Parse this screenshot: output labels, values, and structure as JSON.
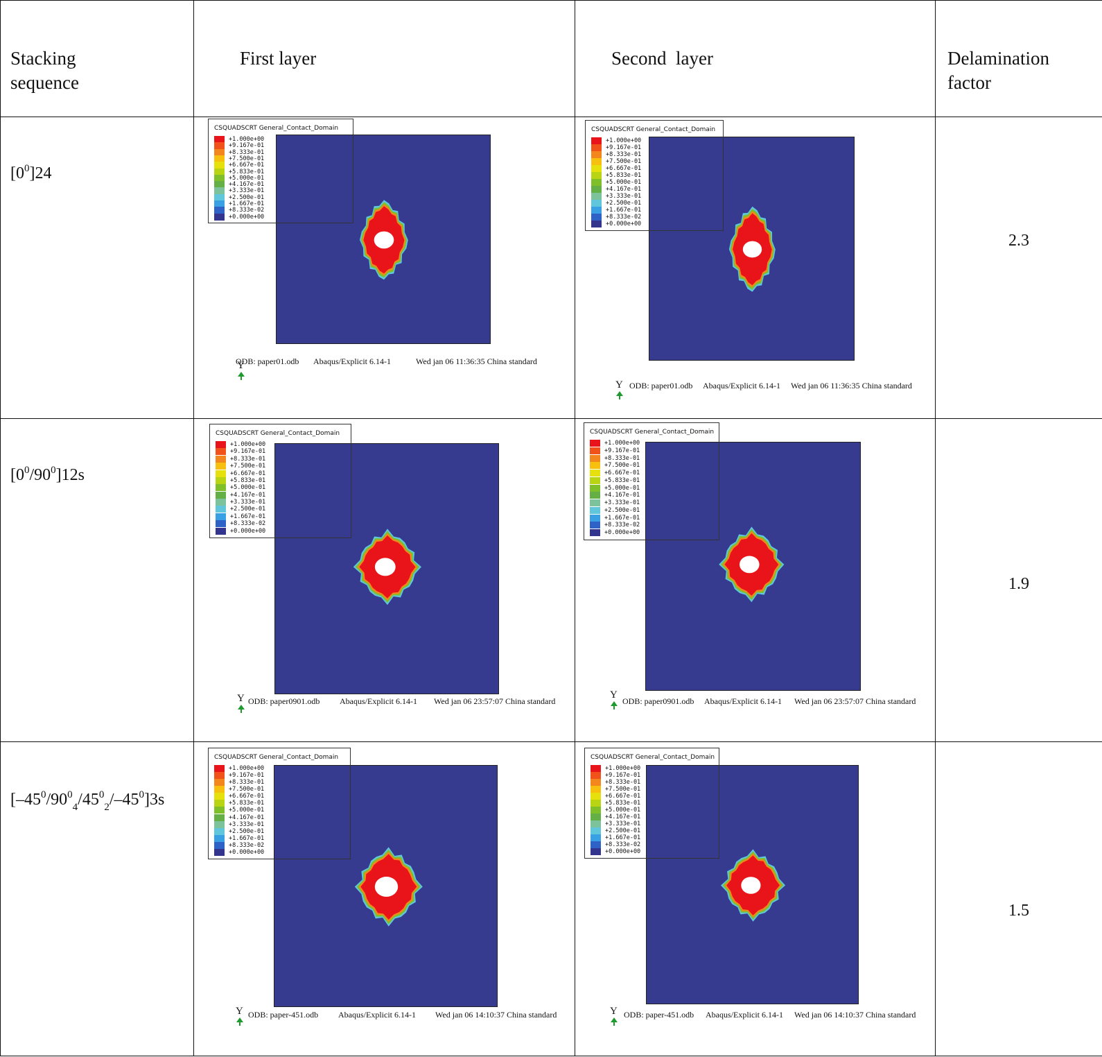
{
  "headers": {
    "stacking_sequence": "Stacking sequence",
    "first_layer": "First layer",
    "second_layer": "Second  layer",
    "delamination_factor": "Delamination factor"
  },
  "legend": {
    "title": "CSQUADSCRT General_Contact_Domain",
    "values": [
      "+1.000e+00",
      "+9.167e-01",
      "+8.333e-01",
      "+7.500e-01",
      "+6.667e-01",
      "+5.833e-01",
      "+5.000e-01",
      "+4.167e-01",
      "+3.333e-01",
      "+2.500e-01",
      "+1.667e-01",
      "+8.333e-02",
      "+0.000e+00"
    ],
    "colors": [
      "#e8141a",
      "#f0521a",
      "#f3871d",
      "#f7c00e",
      "#e6e00d",
      "#b8d413",
      "#7fbf2a",
      "#64b046",
      "#7cc39b",
      "#5fc6dc",
      "#38a0e3",
      "#2f62c7",
      "#33348e"
    ]
  },
  "axis_label": "Y",
  "rows": [
    {
      "sequence": {
        "p1": "[0",
        "s1": "0",
        "p2": "]24",
        "s2": "",
        "p3": "",
        "s3": "",
        "p4": "",
        "s4": "",
        "p5": "",
        "s5": "",
        "p6": ""
      },
      "factor": "2.3",
      "first": {
        "odb": "ODB: paper01.odb",
        "solver": "Abaqus/Explicit 6.14-1",
        "date": "Wed jan 06 11:36:35 China standard"
      },
      "second": {
        "odb": "ODB: paper01.odb",
        "solver": "Abaqus/Explicit 6.14-1",
        "date": "Wed jan 06 11:36:35 China standard"
      }
    },
    {
      "sequence": {
        "p1": "[0",
        "s1": "0",
        "p2": "/90",
        "s2": "0",
        "p3": "]12s",
        "s3": "",
        "p4": "",
        "s4": "",
        "p5": "",
        "s5": "",
        "p6": ""
      },
      "factor": "1.9",
      "first": {
        "odb": "ODB: paper0901.odb",
        "solver": "Abaqus/Explicit 6.14-1",
        "date": "Wed jan 06 23:57:07 China standard"
      },
      "second": {
        "odb": "ODB: paper0901.odb",
        "solver": "Abaqus/Explicit 6.14-1",
        "date": "Wed jan 06 23:57:07 China standard"
      }
    },
    {
      "sequence": {
        "p1": "[–45",
        "s1": "0",
        "p2": "/90",
        "s2": "0",
        "p3": "",
        "s3": "4",
        "p4": "/45",
        "s4": "0",
        "p5": "",
        "s5": "2",
        "p6": "/–45"
      },
      "sequence_tail": {
        "sup": "0",
        "text": "]3s"
      },
      "factor": "1.5",
      "first": {
        "odb": "ODB: paper-451.odb",
        "solver": "Abaqus/Explicit 6.14-1",
        "date": "Wed jan 06 14:10:37 China standard"
      },
      "second": {
        "odb": "ODB: paper-451.odb",
        "solver": "Abaqus/Explicit 6.14-1",
        "date": "Wed jan 06 14:10:37 China standard"
      }
    }
  ]
}
